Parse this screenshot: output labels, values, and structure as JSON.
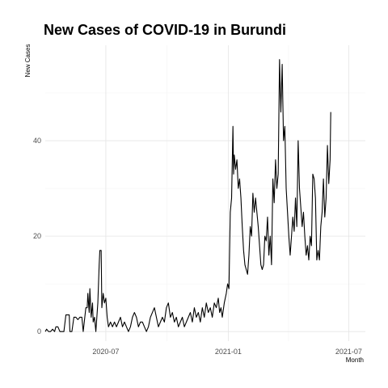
{
  "chart_data": {
    "type": "line",
    "title": "New Cases of COVID-19 in Burundi",
    "xlabel": "Month",
    "ylabel": "New Cases",
    "grid": true,
    "legend": "none",
    "xlim": [
      "2020-04-01",
      "2021-07-26"
    ],
    "ylim": [
      -2,
      60
    ],
    "x_ticks": [
      {
        "date": "2020-07-01",
        "label": "2020-07"
      },
      {
        "date": "2021-01-01",
        "label": "2021-01"
      },
      {
        "date": "2021-07-01",
        "label": "2021-07"
      }
    ],
    "y_ticks": [
      0,
      20,
      40
    ],
    "series": [
      {
        "points": [
          [
            "2020-04-01",
            0
          ],
          [
            "2020-04-03",
            0.5
          ],
          [
            "2020-04-06",
            0
          ],
          [
            "2020-04-09",
            0
          ],
          [
            "2020-04-12",
            0.5
          ],
          [
            "2020-04-15",
            0
          ],
          [
            "2020-04-17",
            1
          ],
          [
            "2020-04-20",
            1
          ],
          [
            "2020-04-23",
            0
          ],
          [
            "2020-04-26",
            0
          ],
          [
            "2020-04-29",
            0
          ],
          [
            "2020-05-02",
            3.5
          ],
          [
            "2020-05-05",
            3.5
          ],
          [
            "2020-05-07",
            3.5
          ],
          [
            "2020-05-08",
            0
          ],
          [
            "2020-05-11",
            0
          ],
          [
            "2020-05-14",
            3
          ],
          [
            "2020-05-17",
            3
          ],
          [
            "2020-05-20",
            2.5
          ],
          [
            "2020-05-23",
            3
          ],
          [
            "2020-05-26",
            3
          ],
          [
            "2020-05-28",
            0
          ],
          [
            "2020-06-01",
            5
          ],
          [
            "2020-06-03",
            5
          ],
          [
            "2020-06-04",
            8
          ],
          [
            "2020-06-06",
            4
          ],
          [
            "2020-06-07",
            9
          ],
          [
            "2020-06-09",
            3
          ],
          [
            "2020-06-11",
            6
          ],
          [
            "2020-06-12",
            2
          ],
          [
            "2020-06-14",
            3
          ],
          [
            "2020-06-16",
            0
          ],
          [
            "2020-06-19",
            6
          ],
          [
            "2020-06-21",
            14
          ],
          [
            "2020-06-22",
            17
          ],
          [
            "2020-06-24",
            17
          ],
          [
            "2020-06-25",
            5
          ],
          [
            "2020-06-27",
            8
          ],
          [
            "2020-06-29",
            6
          ],
          [
            "2020-07-01",
            7
          ],
          [
            "2020-07-03",
            3
          ],
          [
            "2020-07-05",
            1
          ],
          [
            "2020-07-08",
            2
          ],
          [
            "2020-07-11",
            1
          ],
          [
            "2020-07-14",
            2
          ],
          [
            "2020-07-17",
            1
          ],
          [
            "2020-07-20",
            2
          ],
          [
            "2020-07-23",
            3
          ],
          [
            "2020-07-26",
            1
          ],
          [
            "2020-07-29",
            2
          ],
          [
            "2020-08-01",
            1
          ],
          [
            "2020-08-04",
            0
          ],
          [
            "2020-08-07",
            1
          ],
          [
            "2020-08-10",
            3
          ],
          [
            "2020-08-13",
            4
          ],
          [
            "2020-08-16",
            3
          ],
          [
            "2020-08-19",
            1
          ],
          [
            "2020-08-22",
            2
          ],
          [
            "2020-08-25",
            2
          ],
          [
            "2020-08-28",
            1
          ],
          [
            "2020-08-31",
            0
          ],
          [
            "2020-09-03",
            1
          ],
          [
            "2020-09-06",
            3
          ],
          [
            "2020-09-09",
            4
          ],
          [
            "2020-09-12",
            5
          ],
          [
            "2020-09-15",
            3
          ],
          [
            "2020-09-18",
            1
          ],
          [
            "2020-09-21",
            2
          ],
          [
            "2020-09-24",
            3
          ],
          [
            "2020-09-27",
            2
          ],
          [
            "2020-09-30",
            5
          ],
          [
            "2020-10-03",
            6
          ],
          [
            "2020-10-06",
            3
          ],
          [
            "2020-10-09",
            4
          ],
          [
            "2020-10-12",
            2
          ],
          [
            "2020-10-15",
            3
          ],
          [
            "2020-10-18",
            1
          ],
          [
            "2020-10-21",
            2
          ],
          [
            "2020-10-24",
            3
          ],
          [
            "2020-10-27",
            1
          ],
          [
            "2020-10-30",
            2
          ],
          [
            "2020-11-02",
            3
          ],
          [
            "2020-11-05",
            4
          ],
          [
            "2020-11-08",
            2
          ],
          [
            "2020-11-11",
            5
          ],
          [
            "2020-11-14",
            3
          ],
          [
            "2020-11-17",
            4
          ],
          [
            "2020-11-20",
            2
          ],
          [
            "2020-11-23",
            5
          ],
          [
            "2020-11-26",
            3
          ],
          [
            "2020-11-29",
            6
          ],
          [
            "2020-12-02",
            4
          ],
          [
            "2020-12-05",
            5
          ],
          [
            "2020-12-08",
            3
          ],
          [
            "2020-12-11",
            6
          ],
          [
            "2020-12-14",
            5
          ],
          [
            "2020-12-17",
            7
          ],
          [
            "2020-12-19",
            4
          ],
          [
            "2020-12-21",
            5
          ],
          [
            "2020-12-23",
            3
          ],
          [
            "2020-12-26",
            6
          ],
          [
            "2020-12-29",
            8
          ],
          [
            "2020-12-31",
            10
          ],
          [
            "2021-01-02",
            9
          ],
          [
            "2021-01-04",
            25
          ],
          [
            "2021-01-06",
            28
          ],
          [
            "2021-01-08",
            43
          ],
          [
            "2021-01-09",
            33
          ],
          [
            "2021-01-10",
            37
          ],
          [
            "2021-01-12",
            34
          ],
          [
            "2021-01-14",
            36
          ],
          [
            "2021-01-16",
            30
          ],
          [
            "2021-01-18",
            32
          ],
          [
            "2021-01-20",
            28
          ],
          [
            "2021-01-22",
            22
          ],
          [
            "2021-01-24",
            17
          ],
          [
            "2021-01-26",
            14
          ],
          [
            "2021-01-28",
            13
          ],
          [
            "2021-01-30",
            12
          ],
          [
            "2021-02-01",
            16
          ],
          [
            "2021-02-03",
            22
          ],
          [
            "2021-02-05",
            20
          ],
          [
            "2021-02-07",
            29
          ],
          [
            "2021-02-09",
            25
          ],
          [
            "2021-02-11",
            28
          ],
          [
            "2021-02-13",
            25
          ],
          [
            "2021-02-15",
            22
          ],
          [
            "2021-02-17",
            18
          ],
          [
            "2021-02-19",
            14
          ],
          [
            "2021-02-21",
            13
          ],
          [
            "2021-02-23",
            14
          ],
          [
            "2021-02-25",
            20
          ],
          [
            "2021-02-27",
            19
          ],
          [
            "2021-03-01",
            24
          ],
          [
            "2021-03-03",
            16
          ],
          [
            "2021-03-05",
            20
          ],
          [
            "2021-03-07",
            14
          ],
          [
            "2021-03-09",
            32
          ],
          [
            "2021-03-11",
            27
          ],
          [
            "2021-03-13",
            36
          ],
          [
            "2021-03-15",
            30
          ],
          [
            "2021-03-17",
            33
          ],
          [
            "2021-03-19",
            57
          ],
          [
            "2021-03-21",
            46
          ],
          [
            "2021-03-23",
            56
          ],
          [
            "2021-03-25",
            40
          ],
          [
            "2021-03-27",
            43
          ],
          [
            "2021-03-29",
            30
          ],
          [
            "2021-03-31",
            25
          ],
          [
            "2021-04-02",
            20
          ],
          [
            "2021-04-04",
            16
          ],
          [
            "2021-04-06",
            20
          ],
          [
            "2021-04-08",
            24
          ],
          [
            "2021-04-10",
            21
          ],
          [
            "2021-04-12",
            28
          ],
          [
            "2021-04-14",
            22
          ],
          [
            "2021-04-16",
            40
          ],
          [
            "2021-04-18",
            30
          ],
          [
            "2021-04-20",
            26
          ],
          [
            "2021-04-22",
            22
          ],
          [
            "2021-04-24",
            25
          ],
          [
            "2021-04-26",
            20
          ],
          [
            "2021-04-28",
            16
          ],
          [
            "2021-04-30",
            18
          ],
          [
            "2021-05-02",
            15
          ],
          [
            "2021-05-04",
            20
          ],
          [
            "2021-05-06",
            18
          ],
          [
            "2021-05-08",
            33
          ],
          [
            "2021-05-10",
            32
          ],
          [
            "2021-05-12",
            28
          ],
          [
            "2021-05-14",
            15
          ],
          [
            "2021-05-16",
            17
          ],
          [
            "2021-05-18",
            15
          ],
          [
            "2021-05-20",
            22
          ],
          [
            "2021-05-22",
            25
          ],
          [
            "2021-05-24",
            32
          ],
          [
            "2021-05-26",
            24
          ],
          [
            "2021-05-28",
            28
          ],
          [
            "2021-05-30",
            39
          ],
          [
            "2021-06-01",
            31
          ],
          [
            "2021-06-03",
            36
          ],
          [
            "2021-06-04",
            46
          ]
        ]
      }
    ]
  }
}
